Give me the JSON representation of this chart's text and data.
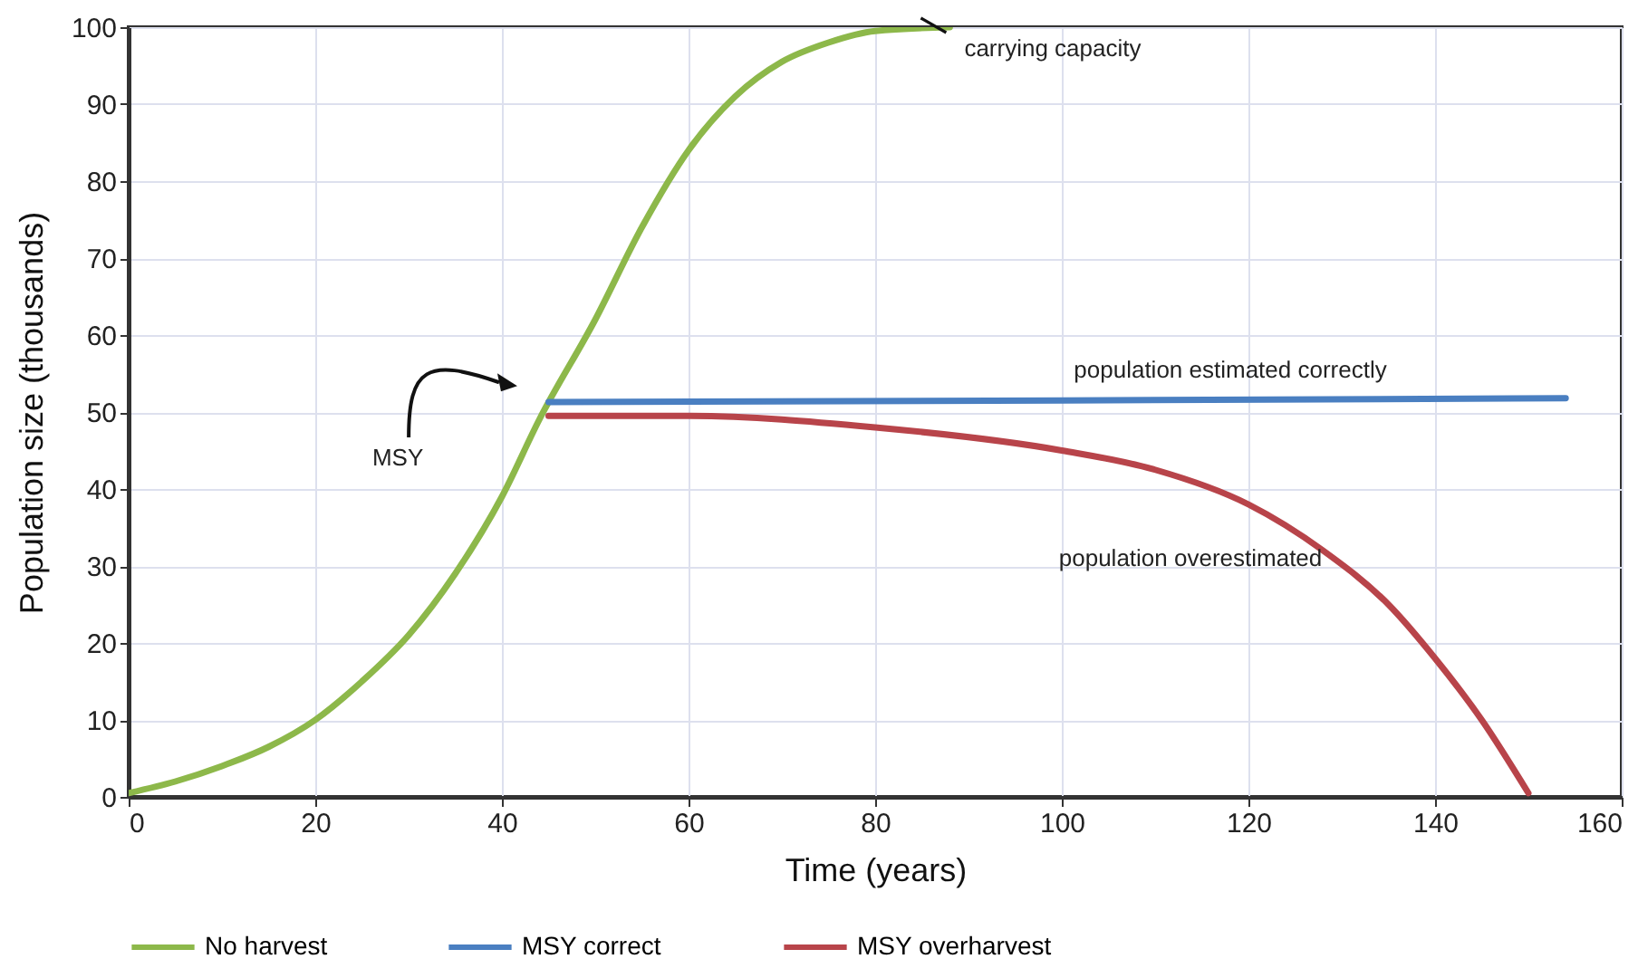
{
  "chart_data": {
    "type": "line",
    "xlabel": "Time (years)",
    "ylabel": "Population size (thousands)",
    "xlim": [
      0,
      160
    ],
    "xticks": [
      0,
      20,
      40,
      60,
      80,
      100,
      120,
      140,
      160
    ],
    "ylim": [
      0,
      100
    ],
    "yticks": [
      0,
      10,
      20,
      30,
      40,
      50,
      60,
      70,
      80,
      90,
      100
    ],
    "grid": true,
    "legend": "bottom",
    "series": [
      {
        "name": "No harvest",
        "color": "#8db84a",
        "x": [
          0,
          5,
          10,
          15,
          20,
          25,
          30,
          35,
          40,
          44,
          50,
          55,
          60,
          65,
          70,
          75,
          80,
          88
        ],
        "values": [
          0.5,
          2,
          4,
          6.5,
          10,
          15,
          21,
          29,
          39,
          49,
          62,
          74,
          84,
          91,
          95.5,
          98,
          99.5,
          100
        ]
      },
      {
        "name": "MSY correct",
        "color": "#4a7fc1",
        "x": [
          45,
          100,
          154
        ],
        "values": [
          51.3,
          51.5,
          51.8
        ]
      },
      {
        "name": "MSY overharvest",
        "color": "#b8444a",
        "x": [
          45,
          60,
          80,
          100,
          110,
          120,
          128,
          135,
          140,
          145,
          150
        ],
        "values": [
          49.5,
          49.5,
          48,
          45,
          42.5,
          38,
          32,
          25,
          18,
          10,
          0.5
        ]
      }
    ],
    "annotations": [
      {
        "text": "carrying capacity",
        "x": 88,
        "y": 100
      },
      "MSY",
      {
        "text": "population estimated correctly",
        "x": 120,
        "y": 51.6
      },
      {
        "text": "population overestimated",
        "x": 131,
        "y": 31
      }
    ]
  }
}
